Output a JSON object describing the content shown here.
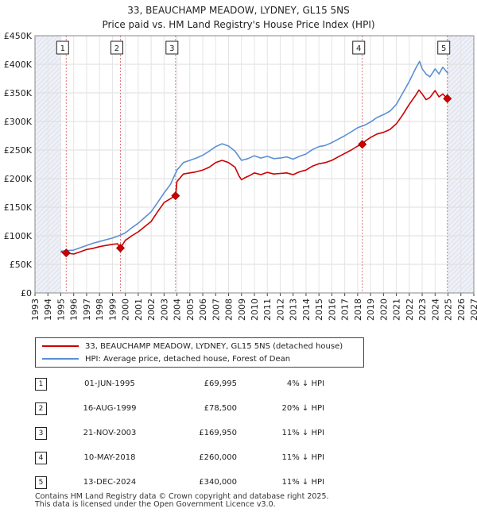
{
  "title_line1": "33, BEAUCHAMP MEADOW, LYDNEY, GL15 5NS",
  "title_line2": "Price paid vs. HM Land Registry's House Price Index (HPI)",
  "colors": {
    "price": "#cc0000",
    "hpi": "#5b8fd4",
    "band": "#eef0f8",
    "vline": "#dd7777"
  },
  "chart_data": {
    "type": "line",
    "xlim": [
      1993,
      2027
    ],
    "ylim": [
      0,
      450000
    ],
    "y_ticks": [
      0,
      50000,
      100000,
      150000,
      200000,
      250000,
      300000,
      350000,
      400000,
      450000
    ],
    "y_tick_labels": [
      "£0",
      "£50K",
      "£100K",
      "£150K",
      "£200K",
      "£250K",
      "£300K",
      "£350K",
      "£400K",
      "£450K"
    ],
    "x_ticks": [
      "1993",
      "1994",
      "1995",
      "1996",
      "1997",
      "1998",
      "1999",
      "2000",
      "2001",
      "2002",
      "2003",
      "2004",
      "2005",
      "2006",
      "2007",
      "2008",
      "2009",
      "2010",
      "2011",
      "2012",
      "2013",
      "2014",
      "2015",
      "2016",
      "2017",
      "2018",
      "2019",
      "2020",
      "2021",
      "2022",
      "2023",
      "2024",
      "2025",
      "2026",
      "2027"
    ],
    "shaded_ranges": [
      [
        1993,
        1995.0
      ],
      [
        2025.0,
        2027
      ]
    ],
    "series": [
      {
        "name": "33, BEAUCHAMP MEADOW, LYDNEY, GL15 5NS (detached house)",
        "x": [
          1995.0,
          1995.42,
          1996.0,
          1996.5,
          1997.0,
          1997.5,
          1998.0,
          1998.5,
          1999.0,
          1999.4,
          1999.62,
          2000.0,
          2000.5,
          2001.0,
          2001.5,
          2002.0,
          2002.5,
          2003.0,
          2003.5,
          2003.89,
          2004.0,
          2004.5,
          2005.0,
          2005.5,
          2006.0,
          2006.5,
          2007.0,
          2007.5,
          2008.0,
          2008.5,
          2008.8,
          2009.0,
          2009.3,
          2009.6,
          2010.0,
          2010.5,
          2011.0,
          2011.5,
          2012.0,
          2012.5,
          2013.0,
          2013.5,
          2014.0,
          2014.5,
          2015.0,
          2015.5,
          2016.0,
          2016.5,
          2017.0,
          2017.5,
          2018.0,
          2018.36,
          2018.6,
          2019.0,
          2019.5,
          2020.0,
          2020.5,
          2021.0,
          2021.5,
          2022.0,
          2022.5,
          2022.75,
          2023.0,
          2023.3,
          2023.6,
          2024.0,
          2024.3,
          2024.6,
          2024.95
        ],
        "values": [
          72000,
          69995,
          68000,
          72000,
          76000,
          78000,
          81000,
          83000,
          85000,
          86000,
          78500,
          92000,
          100000,
          107000,
          116000,
          125000,
          142000,
          158000,
          165000,
          169950,
          195000,
          208000,
          210000,
          212000,
          215000,
          220000,
          228000,
          232000,
          228000,
          220000,
          205000,
          198000,
          202000,
          205000,
          210000,
          207000,
          211000,
          208000,
          209000,
          210000,
          207000,
          212000,
          215000,
          222000,
          226000,
          228000,
          232000,
          238000,
          244000,
          250000,
          257000,
          260000,
          266000,
          272000,
          278000,
          281000,
          286000,
          296000,
          312000,
          330000,
          346000,
          355000,
          348000,
          338000,
          342000,
          354000,
          343000,
          348000,
          340000
        ]
      },
      {
        "name": "HPI: Average price, detached house, Forest of Dean",
        "x": [
          1995.0,
          1995.5,
          1996.0,
          1996.5,
          1997.0,
          1997.5,
          1998.0,
          1998.5,
          1999.0,
          1999.5,
          2000.0,
          2000.5,
          2001.0,
          2001.5,
          2002.0,
          2002.5,
          2003.0,
          2003.5,
          2004.0,
          2004.5,
          2005.0,
          2005.5,
          2006.0,
          2006.5,
          2007.0,
          2007.5,
          2008.0,
          2008.5,
          2009.0,
          2009.5,
          2010.0,
          2010.5,
          2011.0,
          2011.5,
          2012.0,
          2012.5,
          2013.0,
          2013.5,
          2014.0,
          2014.5,
          2015.0,
          2015.5,
          2016.0,
          2016.5,
          2017.0,
          2017.5,
          2018.0,
          2018.5,
          2019.0,
          2019.5,
          2020.0,
          2020.5,
          2021.0,
          2021.5,
          2022.0,
          2022.5,
          2022.8,
          2023.0,
          2023.3,
          2023.6,
          2024.0,
          2024.3,
          2024.6,
          2025.0
        ],
        "values": [
          73000,
          74000,
          75000,
          79000,
          83000,
          87000,
          90000,
          93000,
          96000,
          100000,
          105000,
          114000,
          122000,
          132000,
          142000,
          158000,
          175000,
          190000,
          215000,
          228000,
          232000,
          236000,
          241000,
          248000,
          256000,
          261000,
          257000,
          248000,
          232000,
          235000,
          240000,
          236000,
          239000,
          235000,
          236000,
          238000,
          234000,
          239000,
          243000,
          251000,
          256000,
          258000,
          263000,
          269000,
          275000,
          282000,
          289000,
          293000,
          299000,
          307000,
          312000,
          318000,
          330000,
          350000,
          370000,
          393000,
          405000,
          392000,
          383000,
          378000,
          392000,
          383000,
          395000,
          384000
        ]
      }
    ],
    "sales": [
      {
        "label": "1",
        "x": 1995.42,
        "value": 69995
      },
      {
        "label": "2",
        "x": 1999.62,
        "value": 78500
      },
      {
        "label": "3",
        "x": 2003.89,
        "value": 169950
      },
      {
        "label": "4",
        "x": 2018.36,
        "value": 260000
      },
      {
        "label": "5",
        "x": 2024.95,
        "value": 340000
      }
    ]
  },
  "legend": {
    "price_label": "33, BEAUCHAMP MEADOW, LYDNEY, GL15 5NS (detached house)",
    "hpi_label": "HPI: Average price, detached house, Forest of Dean"
  },
  "table": [
    {
      "num": "1",
      "date": "01-JUN-1995",
      "price": "£69,995",
      "hpi": "4% ↓ HPI"
    },
    {
      "num": "2",
      "date": "16-AUG-1999",
      "price": "£78,500",
      "hpi": "20% ↓ HPI"
    },
    {
      "num": "3",
      "date": "21-NOV-2003",
      "price": "£169,950",
      "hpi": "11% ↓ HPI"
    },
    {
      "num": "4",
      "date": "10-MAY-2018",
      "price": "£260,000",
      "hpi": "11% ↓ HPI"
    },
    {
      "num": "5",
      "date": "13-DEC-2024",
      "price": "£340,000",
      "hpi": "11% ↓ HPI"
    }
  ],
  "footer_line1": "Contains HM Land Registry data © Crown copyright and database right 2025.",
  "footer_line2": "This data is licensed under the Open Government Licence v3.0."
}
